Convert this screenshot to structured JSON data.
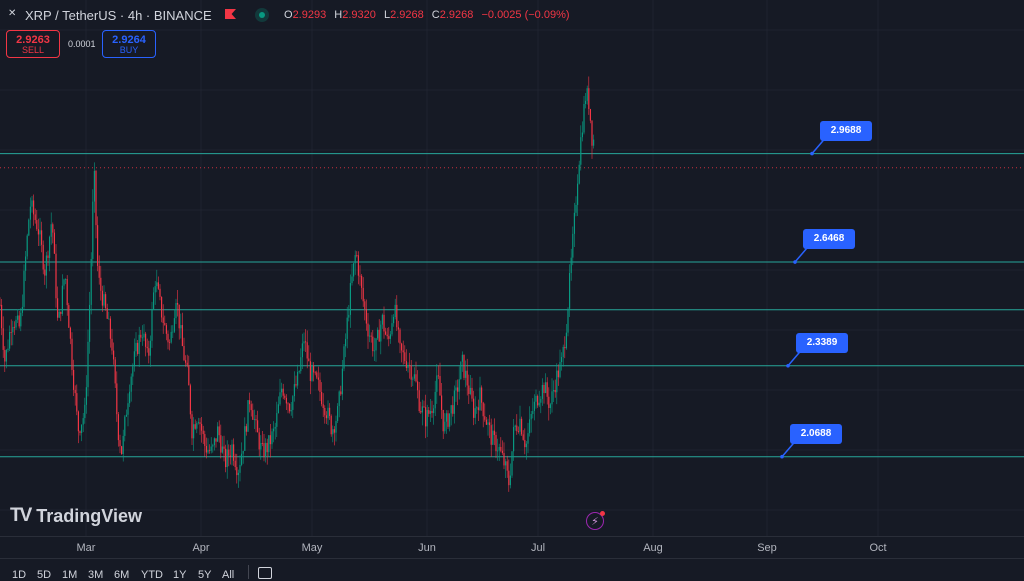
{
  "header": {
    "logo_glyph": "✕",
    "title": "XRP / TetherUS · 4h · BINANCE",
    "ohlc": {
      "o_label": "O",
      "o_value": "2.9293",
      "h_label": "H",
      "h_value": "2.9320",
      "l_label": "L",
      "l_value": "2.9268",
      "c_label": "C",
      "c_value": "2.9268",
      "change": "−0.0025 (−0.09%)"
    },
    "flag_color": "#f23645",
    "live_color": "#089981"
  },
  "trade": {
    "sell_price": "2.9263",
    "sell_label": "SELL",
    "spread": "0.0001",
    "buy_price": "2.9264",
    "buy_label": "BUY"
  },
  "branding": {
    "logo_text": "TradingView",
    "logo_mark": "TV"
  },
  "time_axis": {
    "labels": [
      "Mar",
      "Apr",
      "May",
      "Jun",
      "Jul",
      "Aug",
      "Sep",
      "Oct"
    ]
  },
  "bottom_bar": {
    "ranges": [
      "1D",
      "5D",
      "1M",
      "3M",
      "6M",
      "YTD",
      "1Y",
      "5Y",
      "All"
    ],
    "calendar_icon": "calendar-icon"
  },
  "chart_data": {
    "type": "candlestick",
    "symbol": "XRP / TetherUS",
    "interval": "4h",
    "exchange": "BINANCE",
    "up_color": "#089981",
    "down_color": "#f23645",
    "line_color": "#26a69a",
    "callout_color": "#2962ff",
    "horizontal_levels": [
      {
        "label": "2.9688",
        "value": 2.9688
      },
      {
        "label": "2.6468",
        "value": 2.6468
      },
      {
        "label": "2.3389",
        "value": 2.3389
      },
      {
        "label": "2.0688",
        "value": 2.0688
      }
    ],
    "extra_level_value": 2.505,
    "current_price": 2.9268,
    "y_range": [
      1.95,
      3.4
    ],
    "price_path": [
      [
        0,
        2.52
      ],
      [
        5,
        2.35
      ],
      [
        12,
        2.48
      ],
      [
        20,
        2.45
      ],
      [
        30,
        2.82
      ],
      [
        38,
        2.75
      ],
      [
        45,
        2.62
      ],
      [
        52,
        2.78
      ],
      [
        58,
        2.45
      ],
      [
        65,
        2.62
      ],
      [
        72,
        2.35
      ],
      [
        78,
        2.15
      ],
      [
        85,
        2.2
      ],
      [
        90,
        2.55
      ],
      [
        94,
        2.92
      ],
      [
        98,
        2.6
      ],
      [
        102,
        2.55
      ],
      [
        107,
        2.48
      ],
      [
        112,
        2.4
      ],
      [
        118,
        2.15
      ],
      [
        122,
        2.08
      ],
      [
        126,
        2.2
      ],
      [
        130,
        2.3
      ],
      [
        136,
        2.38
      ],
      [
        142,
        2.45
      ],
      [
        148,
        2.35
      ],
      [
        155,
        2.6
      ],
      [
        160,
        2.52
      ],
      [
        165,
        2.45
      ],
      [
        170,
        2.4
      ],
      [
        176,
        2.55
      ],
      [
        182,
        2.4
      ],
      [
        188,
        2.3
      ],
      [
        192,
        2.15
      ],
      [
        198,
        2.2
      ],
      [
        205,
        2.1
      ],
      [
        212,
        2.08
      ],
      [
        218,
        2.15
      ],
      [
        225,
        2.05
      ],
      [
        232,
        2.1
      ],
      [
        238,
        2.03
      ],
      [
        244,
        2.12
      ],
      [
        250,
        2.25
      ],
      [
        256,
        2.15
      ],
      [
        262,
        2.08
      ],
      [
        268,
        2.1
      ],
      [
        275,
        2.15
      ],
      [
        282,
        2.28
      ],
      [
        290,
        2.22
      ],
      [
        298,
        2.3
      ],
      [
        304,
        2.42
      ],
      [
        310,
        2.32
      ],
      [
        318,
        2.28
      ],
      [
        325,
        2.22
      ],
      [
        332,
        2.15
      ],
      [
        338,
        2.2
      ],
      [
        345,
        2.4
      ],
      [
        350,
        2.55
      ],
      [
        356,
        2.68
      ],
      [
        362,
        2.55
      ],
      [
        368,
        2.45
      ],
      [
        375,
        2.38
      ],
      [
        382,
        2.48
      ],
      [
        388,
        2.4
      ],
      [
        394,
        2.52
      ],
      [
        400,
        2.38
      ],
      [
        408,
        2.35
      ],
      [
        415,
        2.3
      ],
      [
        420,
        2.22
      ],
      [
        426,
        2.18
      ],
      [
        432,
        2.22
      ],
      [
        438,
        2.3
      ],
      [
        444,
        2.15
      ],
      [
        450,
        2.2
      ],
      [
        456,
        2.25
      ],
      [
        462,
        2.35
      ],
      [
        468,
        2.28
      ],
      [
        474,
        2.2
      ],
      [
        480,
        2.25
      ],
      [
        486,
        2.18
      ],
      [
        492,
        2.12
      ],
      [
        498,
        2.1
      ],
      [
        504,
        2.05
      ],
      [
        509,
        1.99
      ],
      [
        514,
        2.15
      ],
      [
        520,
        2.18
      ],
      [
        526,
        2.1
      ],
      [
        532,
        2.2
      ],
      [
        538,
        2.25
      ],
      [
        544,
        2.28
      ],
      [
        550,
        2.22
      ],
      [
        556,
        2.3
      ],
      [
        562,
        2.35
      ],
      [
        566,
        2.45
      ],
      [
        570,
        2.6
      ],
      [
        574,
        2.75
      ],
      [
        578,
        2.92
      ],
      [
        582,
        3.05
      ],
      [
        586,
        3.15
      ],
      [
        589,
        3.12
      ],
      [
        592,
        3.02
      ],
      [
        595,
        3.0
      ]
    ]
  }
}
